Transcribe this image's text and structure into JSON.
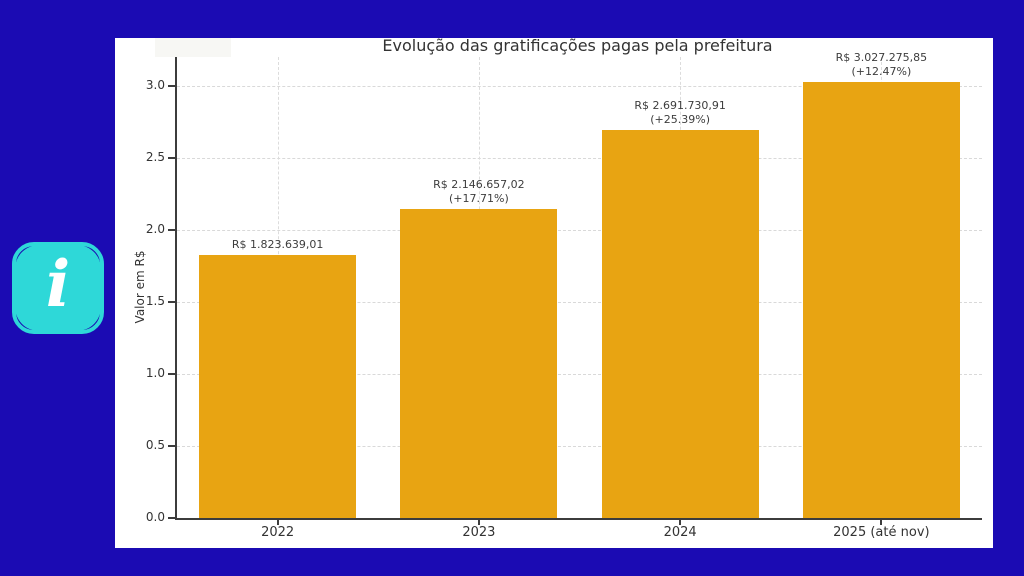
{
  "window": {
    "background": "#1b0bb3",
    "panel_background": "#ffffff"
  },
  "logo": {
    "letter": "i",
    "shape_color": "#2ed8d8",
    "letter_color": "#ffffff"
  },
  "chart_data": {
    "type": "bar",
    "title": "Evolução das gratificações pagas pela prefeitura",
    "xlabel": "",
    "ylabel": "Valor em R$",
    "categories": [
      "2022",
      "2023",
      "2024",
      "2025 (até nov)"
    ],
    "values": [
      1823639.01,
      2146657.02,
      2691730.91,
      3027275.85
    ],
    "growth_pct": [
      null,
      17.71,
      25.39,
      12.47
    ],
    "bar_labels": [
      {
        "value": "R$ 1.823.639,01",
        "pct": ""
      },
      {
        "value": "R$ 2.146.657,02",
        "pct": "(+17.71%)"
      },
      {
        "value": "R$ 2.691.730,91",
        "pct": "(+25.39%)"
      },
      {
        "value": "R$ 3.027.275,85",
        "pct": "(+12.47%)"
      }
    ],
    "yticks": [
      0.0,
      0.5,
      1.0,
      1.5,
      2.0,
      2.5,
      3.0
    ],
    "ytick_labels": [
      "0.0",
      "0.5",
      "1.0",
      "1.5",
      "2.0",
      "2.5",
      "3.0"
    ],
    "ylim": [
      0,
      3.2
    ],
    "unit_divisor": 1000000,
    "bar_color": "#e8a412",
    "grid": true,
    "grid_style": "dashed",
    "legend": "none"
  }
}
